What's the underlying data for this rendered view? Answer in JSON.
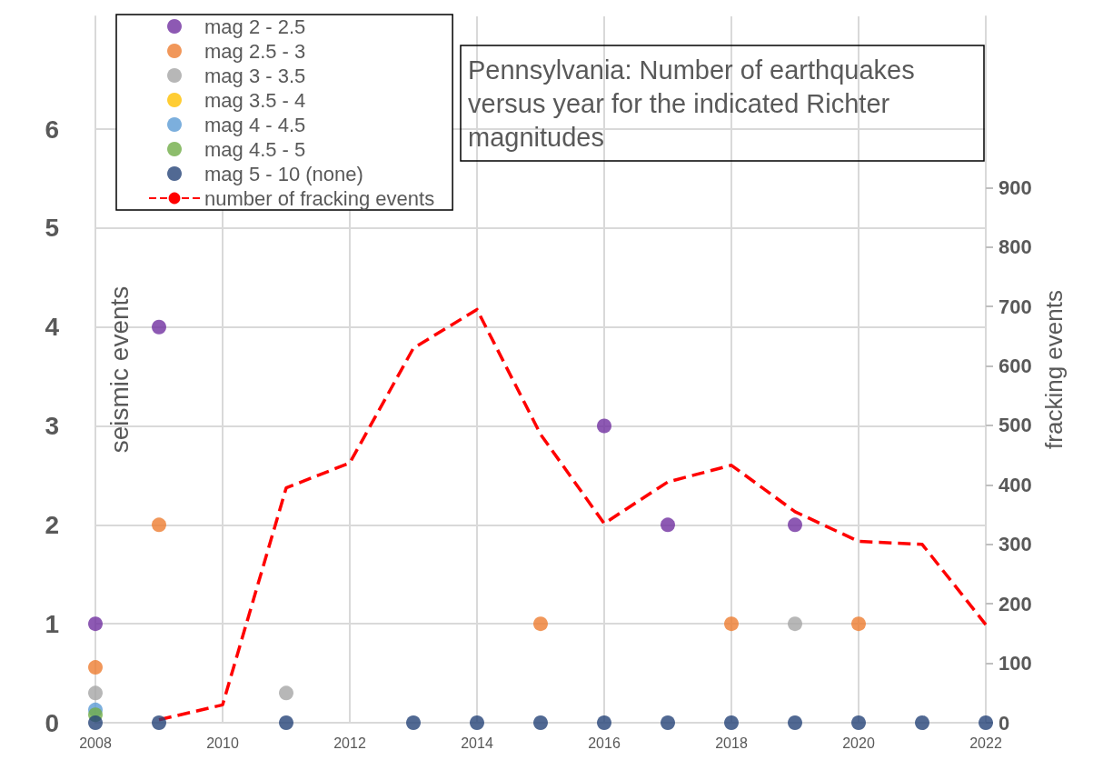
{
  "chart_data": {
    "type": "scatter",
    "title": "Pennsylvania: Number of earthquakes versus year for the indicated Richter magnitudes",
    "ylabel": "seismic events",
    "y2label": "fracking events",
    "x": [
      2008,
      2009,
      2010,
      2011,
      2012,
      2013,
      2014,
      2015,
      2016,
      2017,
      2018,
      2019,
      2020,
      2021,
      2022
    ],
    "xlim": [
      2008,
      2022
    ],
    "xticks": [
      2008,
      2010,
      2012,
      2014,
      2016,
      2018,
      2020,
      2022
    ],
    "ylim": [
      0,
      7.14
    ],
    "yticks": [
      0,
      1,
      2,
      3,
      4,
      5,
      6
    ],
    "y2lim": [
      0,
      1188
    ],
    "y2ticks": [
      0,
      100,
      200,
      300,
      400,
      500,
      600,
      700,
      800,
      900
    ],
    "grid": true,
    "legend": "top left",
    "marker": "circle",
    "series": [
      {
        "name": "mag 2 - 2.5",
        "color": "#7030a0",
        "values": [
          1,
          4,
          null,
          null,
          null,
          null,
          null,
          null,
          3,
          2,
          null,
          2,
          null,
          null,
          null
        ]
      },
      {
        "name": "mag 2.5 - 3",
        "color": "#ed7d31",
        "values": [
          0.56,
          2,
          null,
          null,
          null,
          null,
          null,
          1,
          null,
          null,
          1,
          null,
          1,
          null,
          null
        ]
      },
      {
        "name": "mag 3 - 3.5",
        "color": "#a5a5a5",
        "values": [
          0.3,
          null,
          null,
          0.3,
          null,
          null,
          null,
          null,
          null,
          null,
          null,
          1,
          null,
          null,
          null
        ]
      },
      {
        "name": "mag 3.5 - 4",
        "color": "#ffc000",
        "values": [
          null,
          null,
          null,
          null,
          null,
          null,
          null,
          null,
          null,
          null,
          null,
          null,
          null,
          null,
          null
        ]
      },
      {
        "name": "mag 4 - 4.5",
        "color": "#5b9bd5",
        "values": [
          0.13,
          null,
          null,
          null,
          null,
          null,
          null,
          null,
          null,
          null,
          null,
          null,
          null,
          null,
          null
        ]
      },
      {
        "name": "mag 4.5 - 5",
        "color": "#70ad47",
        "values": [
          0.08,
          null,
          null,
          null,
          null,
          null,
          null,
          null,
          null,
          null,
          null,
          null,
          null,
          null,
          null
        ]
      },
      {
        "name": "mag 5 - 10 (none)",
        "color": "#264478",
        "values": [
          0,
          0,
          null,
          0,
          null,
          0,
          0,
          0,
          0,
          0,
          0,
          0,
          0,
          0,
          0
        ]
      },
      {
        "name": "number of fracking events",
        "type": "line",
        "axis": "y2",
        "marker": "none",
        "line_style": "dashed",
        "color": "#ff0000",
        "values": [
          null,
          5,
          30,
          395,
          437,
          630,
          695,
          485,
          335,
          405,
          433,
          355,
          305,
          300,
          165
        ]
      }
    ]
  }
}
